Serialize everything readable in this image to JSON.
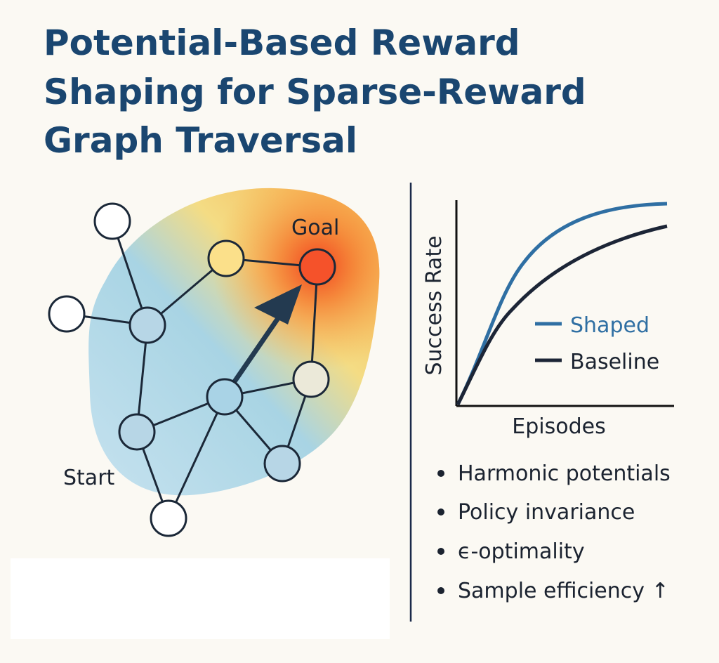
{
  "header": {
    "title_lines": [
      "Potential-Based Reward",
      "Shaping for Sparse-Reward",
      "Graph Traversal"
    ]
  },
  "graph": {
    "goal_label": "Goal",
    "start_label": "Start"
  },
  "plot": {
    "y_label": "Success Rate",
    "x_label": "Episodes",
    "legend": [
      "Shaped",
      "Baseline"
    ]
  },
  "bullets": [
    "Harmonic potentials",
    "Policy invariance",
    "ϵ-optimality",
    "Sample efficiency ↑"
  ]
}
